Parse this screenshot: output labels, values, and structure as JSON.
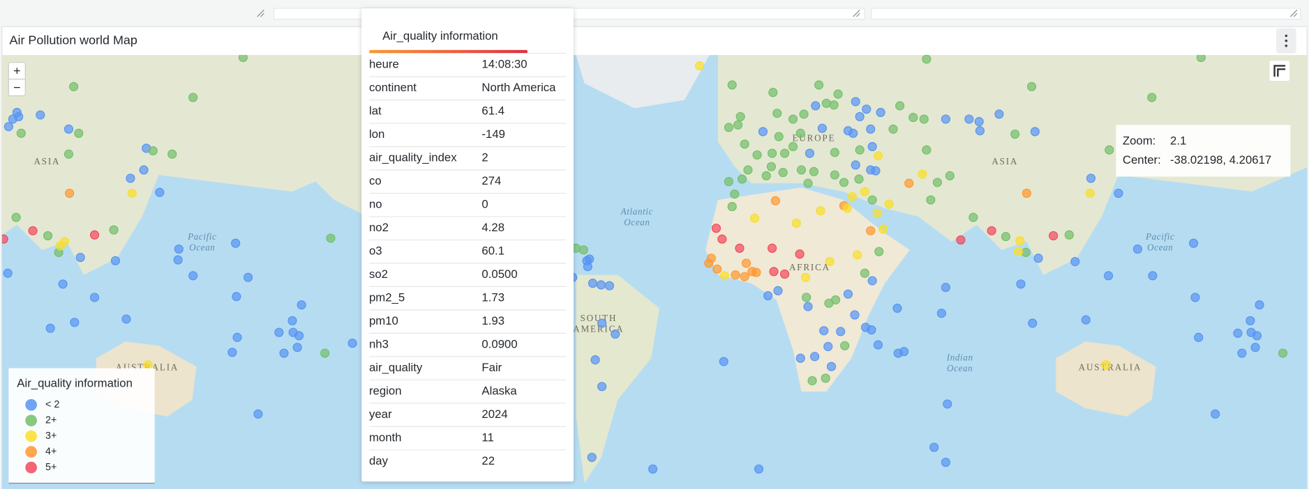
{
  "panel": {
    "title": "Air Pollution world Map"
  },
  "map_labels": [
    [
      "ASIA"
    ],
    [
      "Pacific",
      "Ocean"
    ],
    [
      "AUSTRALIA"
    ],
    [
      "Atlantic",
      "Ocean"
    ],
    [
      "EUROPE"
    ],
    [
      "AFRICA"
    ],
    [
      "SOUTH",
      "AMERICA"
    ],
    [
      "ASIA"
    ],
    [
      "Pacific",
      "Ocean"
    ],
    [
      "Indian",
      "Ocean"
    ],
    [
      "AUSTRALIA"
    ]
  ],
  "zoom_controls": [
    "+",
    "−"
  ],
  "tooltip": {
    "title": "Air_quality information",
    "rows": [
      [
        "heure",
        "14:08:30"
      ],
      [
        "continent",
        "North America"
      ],
      [
        "lat",
        "61.4"
      ],
      [
        "lon",
        "-149"
      ],
      [
        "air_quality_index",
        "2"
      ],
      [
        "co",
        "274"
      ],
      [
        "no",
        "0"
      ],
      [
        "no2",
        "4.28"
      ],
      [
        "o3",
        "60.1"
      ],
      [
        "so2",
        "0.0500"
      ],
      [
        "pm2_5",
        "1.73"
      ],
      [
        "pm10",
        "1.93"
      ],
      [
        "nh3",
        "0.0900"
      ],
      [
        "air_quality",
        "Fair"
      ],
      [
        "region",
        "Alaska"
      ],
      [
        "year",
        "2024"
      ],
      [
        "month",
        "11"
      ],
      [
        "day",
        "22"
      ]
    ]
  },
  "legend": {
    "title": "Air_quality information",
    "items": [
      {
        "label": "< 2",
        "color": "#5794f2"
      },
      {
        "label": "2+",
        "color": "#73bf69"
      },
      {
        "label": "3+",
        "color": "#fade2a"
      },
      {
        "label": "4+",
        "color": "#ff9830"
      },
      {
        "label": "5+",
        "color": "#f2495c"
      }
    ]
  },
  "view_info": {
    "zoom_label": "Zoom:",
    "zoom": "2.1",
    "center_label": "Center:",
    "center": "-38.02198, 4.20617"
  }
}
